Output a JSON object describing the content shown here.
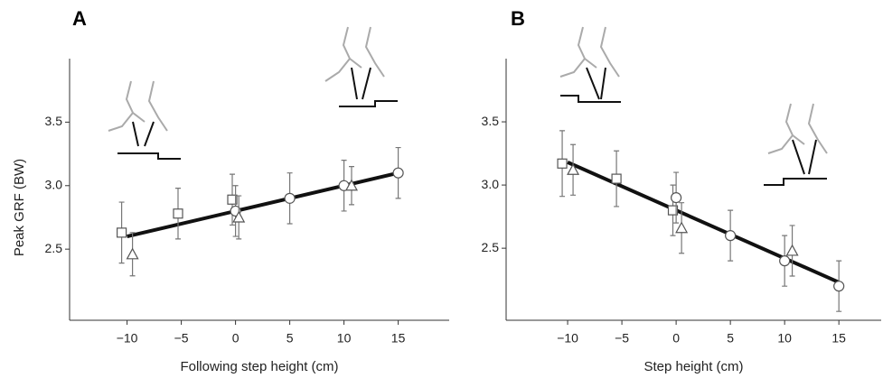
{
  "chart_data": [
    {
      "type": "scatter",
      "panel_label": "A",
      "ylabel": "Peak GRF (BW)",
      "xlabel": "Following step height (cm)",
      "xlim": [
        -15.3,
        19.7
      ],
      "ylim": [
        1.94,
        4.0
      ],
      "xticks": [
        {
          "value": -10,
          "label": "−10"
        },
        {
          "value": -5,
          "label": "−5"
        },
        0,
        5,
        10,
        15
      ],
      "yticks": [
        2.5,
        {
          "value": 3,
          "label": "3.0"
        },
        3.5
      ],
      "color": "#777",
      "series": [
        {
          "marker": "square",
          "x": [
            -10.5,
            -5.3,
            -0.3
          ],
          "values": [
            2.63,
            2.78,
            2.89
          ],
          "errors": [
            0.24,
            0.2,
            0.2
          ]
        },
        {
          "marker": "circle",
          "x": [
            0,
            5,
            10,
            15
          ],
          "values": [
            2.8,
            2.9,
            3.0,
            3.1
          ],
          "errors": [
            0.2,
            0.2,
            0.2,
            0.2
          ]
        },
        {
          "marker": "triangle",
          "x": [
            -9.5,
            0.3,
            10.7
          ],
          "values": [
            2.46,
            2.75,
            3.0
          ],
          "errors": [
            0.17,
            0.17,
            0.15
          ]
        }
      ],
      "fit": {
        "x": [
          -10,
          15
        ],
        "values": [
          2.6,
          3.1
        ],
        "color": "#111"
      }
    },
    {
      "type": "scatter",
      "panel_label": "B",
      "xlabel": "Step height (cm)",
      "xlim": [
        -15.67,
        18.9
      ],
      "ylim": [
        1.93,
        4.0
      ],
      "xticks": [
        {
          "value": -10,
          "label": "−10"
        },
        {
          "value": -5,
          "label": "−5"
        },
        0,
        5,
        10,
        15
      ],
      "yticks": [
        2.5,
        {
          "value": 3,
          "label": "3.0"
        },
        3.5
      ],
      "color": "#777",
      "series": [
        {
          "marker": "square",
          "x": [
            -10.5,
            -5.5,
            -0.3
          ],
          "values": [
            3.17,
            3.05,
            2.8
          ],
          "errors": [
            0.26,
            0.22,
            0.2
          ]
        },
        {
          "marker": "circle",
          "x": [
            0,
            5,
            10,
            15
          ],
          "values": [
            2.9,
            2.6,
            2.4,
            2.2
          ],
          "errors": [
            0.2,
            0.2,
            0.2,
            0.2
          ]
        },
        {
          "marker": "triangle",
          "x": [
            -9.5,
            0.5,
            10.7
          ],
          "values": [
            3.12,
            2.66,
            2.48
          ],
          "errors": [
            0.2,
            0.2,
            0.2
          ]
        }
      ],
      "fit": {
        "x": [
          -10,
          15
        ],
        "values": [
          3.18,
          2.23
        ],
        "color": "#111"
      }
    }
  ]
}
